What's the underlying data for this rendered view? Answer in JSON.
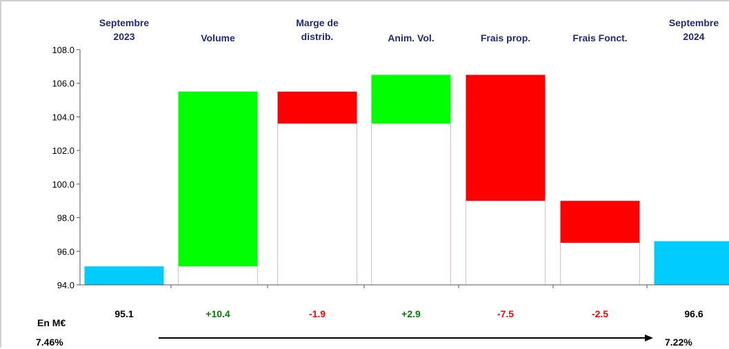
{
  "chart_data": {
    "type": "bar",
    "subtype": "waterfall",
    "categories": [
      [
        "Septembre",
        "2023"
      ],
      [
        "Volume"
      ],
      [
        "Marge de",
        "distrib."
      ],
      [
        "Anim. Vol."
      ],
      [
        "Frais prop."
      ],
      [
        "Frais Fonct."
      ],
      [
        "Septembre",
        "2024"
      ]
    ],
    "bars": [
      {
        "kind": "total",
        "start": 94.0,
        "end": 95.1,
        "color": "#00ccff"
      },
      {
        "kind": "increase",
        "start": 95.1,
        "end": 105.5,
        "color": "#00ff00"
      },
      {
        "kind": "decrease",
        "start": 105.5,
        "end": 103.6,
        "color": "#ff0000"
      },
      {
        "kind": "increase",
        "start": 103.6,
        "end": 106.5,
        "color": "#00ff00"
      },
      {
        "kind": "decrease",
        "start": 106.5,
        "end": 99.0,
        "color": "#ff0000"
      },
      {
        "kind": "decrease",
        "start": 99.0,
        "end": 96.5,
        "color": "#ff0000"
      },
      {
        "kind": "total",
        "start": 94.0,
        "end": 96.6,
        "color": "#00ccff"
      }
    ],
    "value_labels": [
      "95.1",
      "+10.4",
      "-1.9",
      "+2.9",
      "-7.5",
      "-2.5",
      "96.6"
    ],
    "value_label_colors": [
      "#000000",
      "#008000",
      "#ff0000",
      "#008000",
      "#ff0000",
      "#ff0000",
      "#000000"
    ],
    "yticks": [
      "94.0",
      "96.0",
      "98.0",
      "100.0",
      "102.0",
      "104.0",
      "106.0",
      "108.0"
    ],
    "ylim": [
      94.0,
      108.0
    ],
    "unit_label": "En M€",
    "start_pct": "7.46%",
    "end_pct": "7.22%",
    "grid": false
  }
}
